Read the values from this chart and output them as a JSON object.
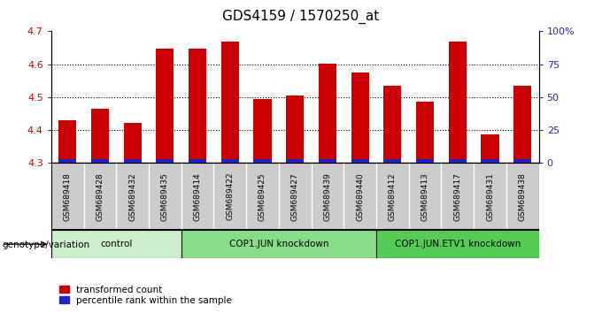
{
  "title": "GDS4159 / 1570250_at",
  "samples": [
    "GSM689418",
    "GSM689428",
    "GSM689432",
    "GSM689435",
    "GSM689414",
    "GSM689422",
    "GSM689425",
    "GSM689427",
    "GSM689439",
    "GSM689440",
    "GSM689412",
    "GSM689413",
    "GSM689417",
    "GSM689431",
    "GSM689438"
  ],
  "red_values": [
    4.43,
    4.465,
    4.42,
    4.648,
    4.648,
    4.668,
    4.495,
    4.505,
    4.602,
    4.574,
    4.535,
    4.485,
    4.668,
    4.385,
    4.535
  ],
  "groups": [
    {
      "label": "control",
      "start": 0,
      "end": 4,
      "color": "#cceecc"
    },
    {
      "label": "COP1.JUN knockdown",
      "start": 4,
      "end": 10,
      "color": "#88dd88"
    },
    {
      "label": "COP1.JUN.ETV1 knockdown",
      "start": 10,
      "end": 15,
      "color": "#55cc55"
    }
  ],
  "ylim_left": [
    4.3,
    4.7
  ],
  "ylim_right": [
    0,
    100
  ],
  "bar_width": 0.55,
  "bar_color_red": "#cc0000",
  "bar_color_blue": "#2222cc",
  "sample_bg": "#cccccc",
  "yticks_left": [
    4.3,
    4.4,
    4.5,
    4.6,
    4.7
  ],
  "yticks_right": [
    0,
    25,
    50,
    75,
    100
  ],
  "ytick_labels_right": [
    "0",
    "25",
    "50",
    "75",
    "100%"
  ],
  "genotype_label": "genotype/variation",
  "legend_red": "transformed count",
  "legend_blue": "percentile rank within the sample",
  "title_fontsize": 11,
  "left_color": "#cc0000",
  "right_color": "#2222cc",
  "blue_bar_height": 0.012
}
